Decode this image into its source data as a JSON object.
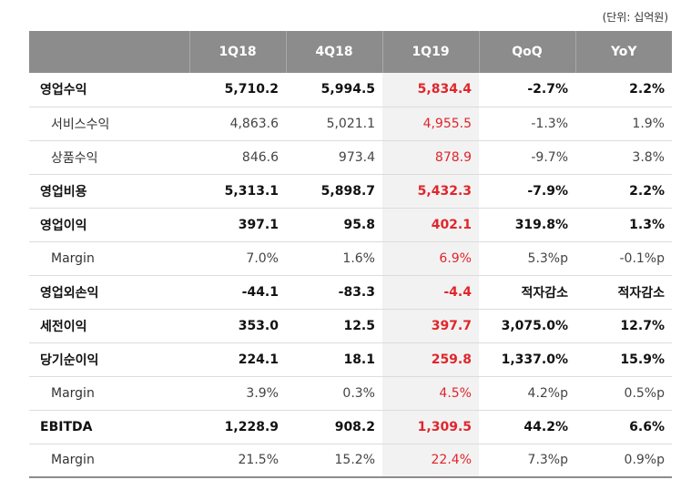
{
  "unit_note": "(단위: 십억원)",
  "header": [
    "",
    "1Q18",
    "4Q18",
    "1Q19",
    "QoQ",
    "YoY"
  ],
  "rows": [
    {
      "label": "영업수익",
      "type": "main",
      "v": [
        "5,710.2",
        "5,994.5",
        "5,834.4",
        "-2.7%",
        "2.2%"
      ]
    },
    {
      "label": "서비스수익",
      "type": "sub",
      "v": [
        "4,863.6",
        "5,021.1",
        "4,955.5",
        "-1.3%",
        "1.9%"
      ]
    },
    {
      "label": "상품수익",
      "type": "sub",
      "v": [
        "846.6",
        "973.4",
        "878.9",
        "-9.7%",
        "3.8%"
      ]
    },
    {
      "label": "영업비용",
      "type": "main",
      "v": [
        "5,313.1",
        "5,898.7",
        "5,432.3",
        "-7.9%",
        "2.2%"
      ]
    },
    {
      "label": "영업이익",
      "type": "main",
      "v": [
        "397.1",
        "95.8",
        "402.1",
        "319.8%",
        "1.3%"
      ]
    },
    {
      "label": "Margin",
      "type": "sub",
      "v": [
        "7.0%",
        "1.6%",
        "6.9%",
        "5.3%p",
        "-0.1%p"
      ]
    },
    {
      "label": "영업외손익",
      "type": "main",
      "v": [
        "-44.1",
        "-83.3",
        "-4.4",
        "적자감소",
        "적자감소"
      ]
    },
    {
      "label": "세전이익",
      "type": "main",
      "v": [
        "353.0",
        "12.5",
        "397.7",
        "3,075.0%",
        "12.7%"
      ]
    },
    {
      "label": "당기순이익",
      "type": "main",
      "v": [
        "224.1",
        "18.1",
        "259.8",
        "1,337.0%",
        "15.9%"
      ]
    },
    {
      "label": "Margin",
      "type": "sub",
      "v": [
        "3.9%",
        "0.3%",
        "4.5%",
        "4.2%p",
        "0.5%p"
      ]
    },
    {
      "label": "EBITDA",
      "type": "main",
      "v": [
        "1,228.9",
        "908.2",
        "1,309.5",
        "44.2%",
        "6.6%"
      ]
    },
    {
      "label": "Margin",
      "type": "sub",
      "v": [
        "21.5%",
        "15.2%",
        "22.4%",
        "7.3%p",
        "0.9%p"
      ]
    }
  ],
  "colors": {
    "header_bg": "#8c8c8c",
    "highlight_bg": "#f2f2f2",
    "highlight_text": "#e0262b"
  }
}
